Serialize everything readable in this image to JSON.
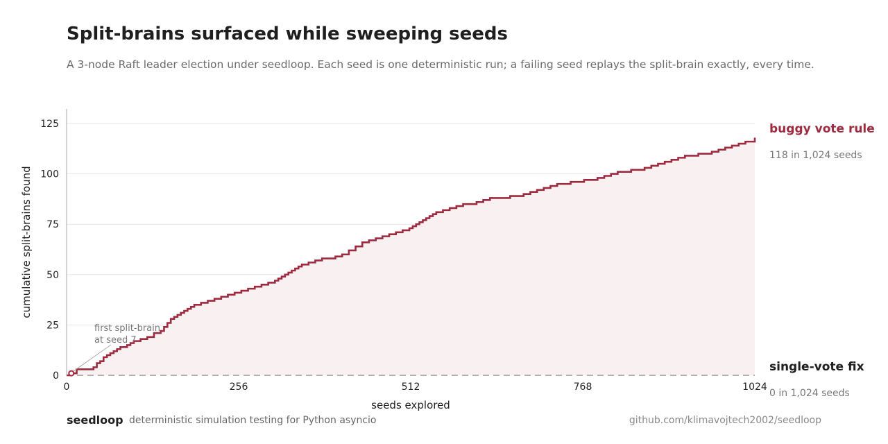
{
  "header": {
    "title": "Split-brains surfaced while sweeping seeds",
    "subtitle": "A 3-node Raft leader election under seedloop. Each seed is one deterministic run; a failing seed replays the split-brain exactly, every time."
  },
  "footer": {
    "brand": "seedloop",
    "tagline": "deterministic simulation testing for Python asyncio",
    "url": "github.com/klimavojtech2002/seedloop"
  },
  "colors": {
    "buggy": "#9e2a3f",
    "buggy_fill": "#f8f0f1",
    "fix": "#999999",
    "grid": "#e6e6e6",
    "axis": "#aaaaaa"
  },
  "chart_data": {
    "type": "line",
    "title": "Split-brains surfaced while sweeping seeds",
    "xlabel": "seeds explored",
    "ylabel": "cumulative split-brains found",
    "xlim": [
      0,
      1024
    ],
    "ylim": [
      0,
      125
    ],
    "xticks": [
      0,
      256,
      512,
      768,
      1024
    ],
    "yticks": [
      0,
      25,
      50,
      75,
      100,
      125
    ],
    "grid": true,
    "series": [
      {
        "name": "buggy vote rule",
        "summary": "118 in 1,024 seeds",
        "style": "step",
        "x": [
          0,
          7,
          15,
          40,
          45,
          50,
          55,
          60,
          65,
          70,
          75,
          80,
          90,
          95,
          100,
          110,
          120,
          130,
          140,
          145,
          150,
          155,
          160,
          165,
          170,
          175,
          180,
          185,
          190,
          200,
          210,
          220,
          230,
          240,
          250,
          260,
          270,
          280,
          290,
          300,
          310,
          315,
          320,
          325,
          330,
          335,
          340,
          345,
          350,
          360,
          370,
          380,
          400,
          410,
          420,
          430,
          440,
          450,
          460,
          470,
          480,
          490,
          500,
          510,
          515,
          520,
          525,
          530,
          535,
          540,
          545,
          550,
          560,
          570,
          580,
          590,
          610,
          620,
          630,
          660,
          680,
          690,
          700,
          710,
          720,
          730,
          750,
          770,
          790,
          800,
          810,
          820,
          840,
          860,
          870,
          880,
          890,
          900,
          910,
          920,
          940,
          960,
          970,
          980,
          990,
          1000,
          1010,
          1024
        ],
        "y": [
          0,
          1,
          3,
          4,
          6,
          7,
          9,
          10,
          11,
          12,
          13,
          14,
          15,
          16,
          17,
          18,
          19,
          21,
          22,
          24,
          26,
          28,
          29,
          30,
          31,
          32,
          33,
          34,
          35,
          36,
          37,
          38,
          39,
          40,
          41,
          42,
          43,
          44,
          45,
          46,
          47,
          48,
          49,
          50,
          51,
          52,
          53,
          54,
          55,
          56,
          57,
          58,
          59,
          60,
          62,
          64,
          66,
          67,
          68,
          69,
          70,
          71,
          72,
          73,
          74,
          75,
          76,
          77,
          78,
          79,
          80,
          81,
          82,
          83,
          84,
          85,
          86,
          87,
          88,
          89,
          90,
          91,
          92,
          93,
          94,
          95,
          96,
          97,
          98,
          99,
          100,
          101,
          102,
          103,
          104,
          105,
          106,
          107,
          108,
          109,
          110,
          111,
          112,
          113,
          114,
          115,
          116,
          118
        ]
      },
      {
        "name": "single-vote fix",
        "summary": "0 in 1,024 seeds",
        "style": "dashed",
        "x": [
          0,
          1024
        ],
        "y": [
          0,
          0
        ]
      }
    ],
    "annotation": {
      "line1": "first split-brain",
      "line2": "at seed 7",
      "x": 7,
      "y": 1
    }
  }
}
